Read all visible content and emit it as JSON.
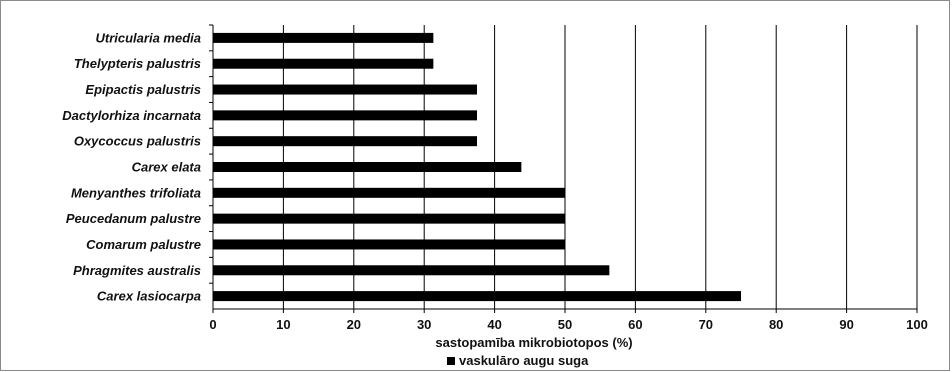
{
  "chart_data": {
    "type": "bar",
    "orientation": "horizontal",
    "categories": [
      "Utricularia media",
      "Thelypteris palustris",
      "Epipactis palustris",
      "Dactylorhiza incarnata",
      "Oxycoccus palustris",
      "Carex elata",
      "Menyanthes trifoliata",
      "Peucedanum palustre",
      "Comarum palustre",
      "Phragmites australis",
      "Carex lasiocarpa"
    ],
    "series": [
      {
        "name": "vaskulāro augu suga",
        "values": [
          31.3,
          31.3,
          37.5,
          37.5,
          37.5,
          43.8,
          50,
          50,
          50,
          56.3,
          75
        ]
      }
    ],
    "xlabel": "sastopamība mikrobiotopos  (%)",
    "ylabel": "",
    "xlim": [
      0,
      100
    ],
    "xticks": [
      "0",
      "10",
      "20",
      "30",
      "40",
      "50",
      "60",
      "70",
      "80",
      "90",
      "100"
    ],
    "grid": "vertical",
    "legend": "bottom",
    "bar_color": "#000000"
  }
}
